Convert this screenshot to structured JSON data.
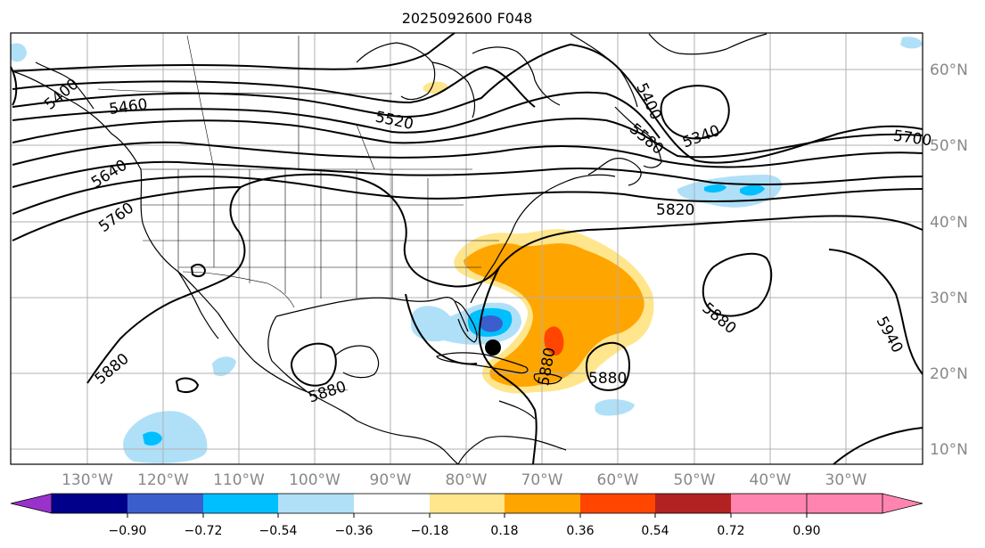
{
  "title": "2025092600 F048",
  "map": {
    "lat_labels": [
      "60°N",
      "50°N",
      "40°N",
      "30°N",
      "20°N",
      "10°N"
    ],
    "lon_labels": [
      "130°W",
      "120°W",
      "110°W",
      "100°W",
      "90°W",
      "80°W",
      "70°W",
      "60°W",
      "50°W",
      "40°W",
      "30°W"
    ],
    "contour_labels": [
      "5400",
      "5460",
      "5520",
      "5400",
      "5340",
      "5580",
      "5640",
      "5700",
      "5760",
      "5820",
      "5880",
      "5880",
      "5880",
      "5880",
      "5880",
      "5940"
    ],
    "marker": "storm-center-marker"
  },
  "colorbar": {
    "ticks": [
      "−0.90",
      "−0.72",
      "−0.54",
      "−0.36",
      "−0.18",
      "0.18",
      "0.36",
      "0.54",
      "0.72",
      "0.90"
    ],
    "colors": [
      "#9932cc",
      "#00008b",
      "#3a5fcd",
      "#00bfff",
      "#b0e0f8",
      "#ffffff",
      "#ffe68c",
      "#ffa500",
      "#ff4500",
      "#b22222",
      "#ff85b0"
    ]
  },
  "colors": {
    "positive_light": "#ffe68c",
    "positive_mid": "#ffa500",
    "positive_strong": "#ff4500",
    "negative_light": "#b0e0f8",
    "negative_mid": "#00bfff",
    "negative_strong": "#3a5fcd",
    "grid": "#b0b0b0"
  }
}
